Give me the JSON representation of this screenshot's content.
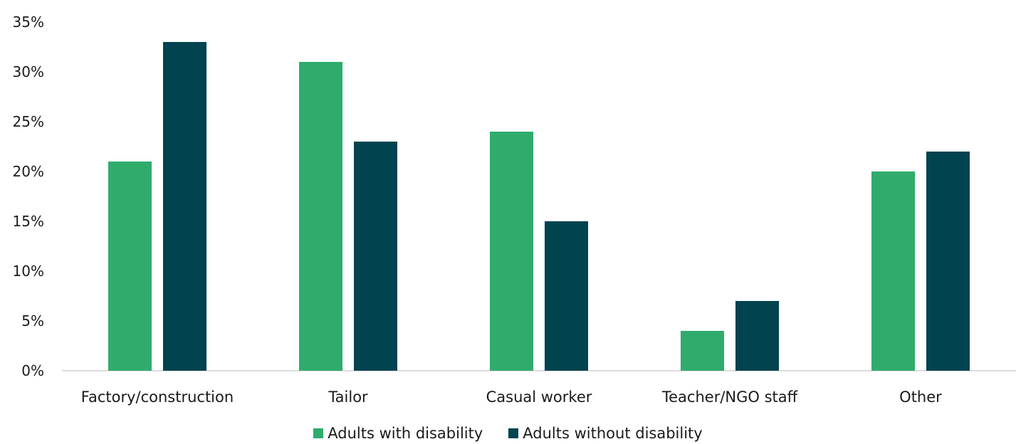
{
  "chart_data": {
    "type": "bar",
    "categories": [
      "Factory/construction",
      "Tailor",
      "Casual worker",
      "Teacher/NGO staff",
      "Other"
    ],
    "series": [
      {
        "name": "Adults with disability",
        "values": [
          21,
          31,
          24,
          4,
          20
        ],
        "color": "#2fac6c"
      },
      {
        "name": "Adults without disability",
        "values": [
          33,
          23,
          15,
          7,
          22
        ],
        "color": "#01434f"
      }
    ],
    "ylim": [
      0,
      35
    ],
    "yticks": [
      "0%",
      "5%",
      "10%",
      "15%",
      "20%",
      "25%",
      "30%",
      "35%"
    ],
    "grid": false,
    "legend_position": "bottom"
  }
}
